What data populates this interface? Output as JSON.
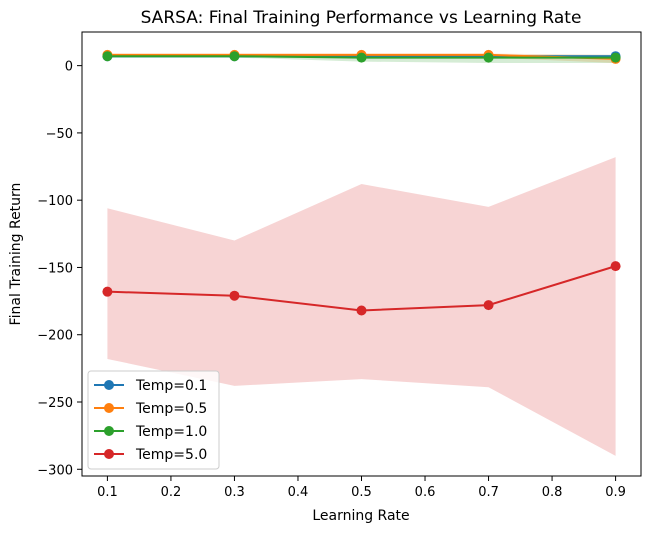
{
  "chart_data": {
    "type": "line",
    "title": "SARSA: Final Training Performance vs Learning Rate",
    "xlabel": "Learning Rate",
    "ylabel": "Final Training Return",
    "xlim": [
      0.06,
      0.94
    ],
    "ylim": [
      -305,
      25
    ],
    "xticks": [
      0.1,
      0.2,
      0.3,
      0.4,
      0.5,
      0.6,
      0.7,
      0.8,
      0.9
    ],
    "xtick_labels": [
      "0.1",
      "0.2",
      "0.3",
      "0.4",
      "0.5",
      "0.6",
      "0.7",
      "0.8",
      "0.9"
    ],
    "yticks": [
      0,
      -50,
      -100,
      -150,
      -200,
      -250,
      -300
    ],
    "ytick_labels": [
      "0",
      "−50",
      "−100",
      "−150",
      "−200",
      "−250",
      "−300"
    ],
    "grid": false,
    "legend_position": "lower-left",
    "x": [
      0.1,
      0.3,
      0.5,
      0.7,
      0.9
    ],
    "series": [
      {
        "name": "Temp=0.1",
        "color": "#1f77b4",
        "values": [
          7,
          7,
          7,
          7,
          7
        ],
        "lower": [
          6,
          6,
          6,
          6,
          5
        ],
        "upper": [
          8,
          8,
          8,
          8,
          8
        ]
      },
      {
        "name": "Temp=0.5",
        "color": "#ff7f0e",
        "values": [
          8,
          8,
          8,
          8,
          5
        ],
        "lower": [
          7,
          7,
          7,
          6,
          2
        ],
        "upper": [
          9,
          9,
          9,
          9,
          8
        ]
      },
      {
        "name": "Temp=1.0",
        "color": "#2ca02c",
        "values": [
          7,
          7,
          6,
          6,
          6
        ],
        "lower": [
          6,
          6,
          3,
          2,
          2
        ],
        "upper": [
          8,
          8,
          8,
          8,
          8
        ]
      },
      {
        "name": "Temp=5.0",
        "color": "#d62728",
        "values": [
          -168,
          -171,
          -182,
          -178,
          -149
        ],
        "lower": [
          -218,
          -238,
          -233,
          -239,
          -290
        ],
        "upper": [
          -106,
          -130,
          -88,
          -105,
          -68
        ]
      }
    ]
  }
}
